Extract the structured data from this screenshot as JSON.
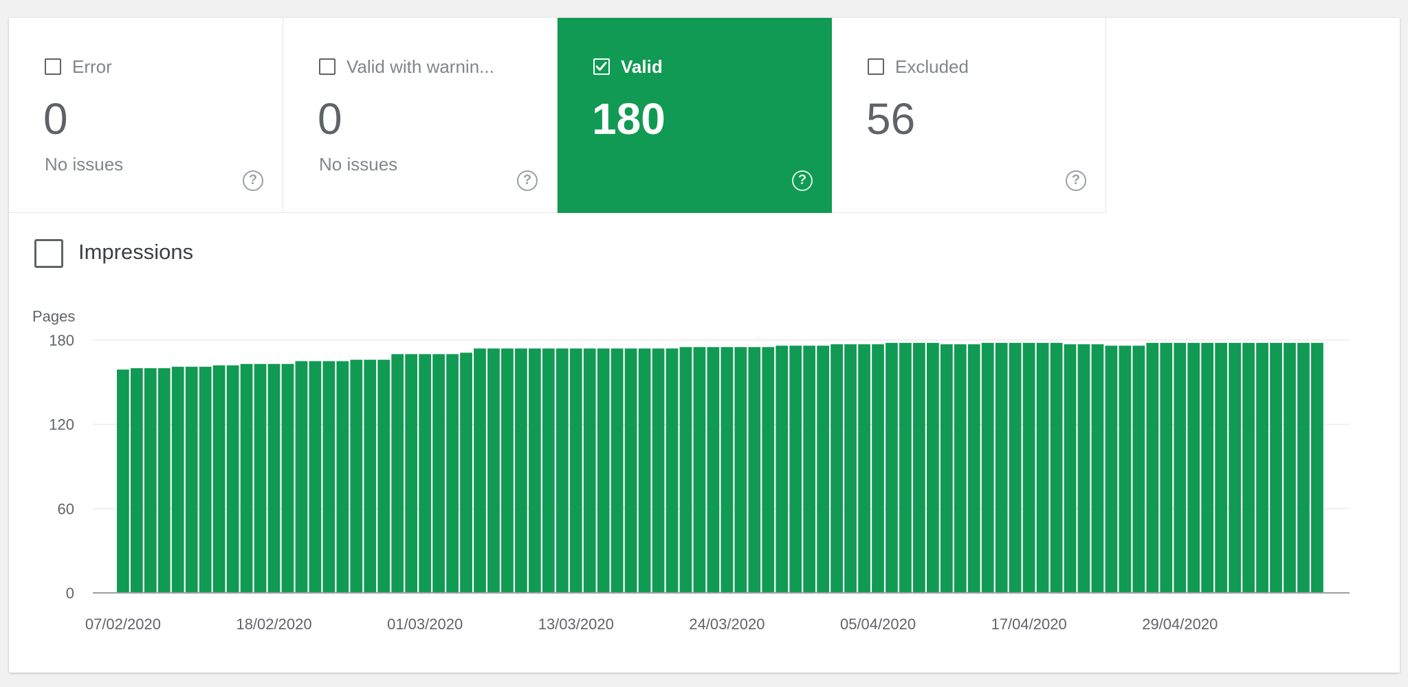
{
  "tiles": [
    {
      "label": "Error",
      "count": "0",
      "sub": "No issues",
      "checked": false
    },
    {
      "label": "Valid with warnin...",
      "count": "0",
      "sub": "No issues",
      "checked": false
    },
    {
      "label": "Valid",
      "count": "180",
      "sub": "",
      "checked": true
    },
    {
      "label": "Excluded",
      "count": "56",
      "sub": "",
      "checked": false
    }
  ],
  "help_glyph": "?",
  "impressions": {
    "label": "Impressions",
    "checked": false
  },
  "colors": {
    "accent": "#119a53",
    "bar": "#119a53"
  },
  "chart_data": {
    "type": "bar",
    "ylabel": "Pages",
    "ylim": [
      0,
      180
    ],
    "yticks": [
      0,
      60,
      120,
      180
    ],
    "grid": true,
    "xtick_labels": [
      "07/02/2020",
      "18/02/2020",
      "01/03/2020",
      "13/03/2020",
      "24/03/2020",
      "05/04/2020",
      "17/04/2020",
      "29/04/2020"
    ],
    "series": [
      {
        "values": [
          159,
          160,
          160,
          160,
          161,
          161,
          161,
          162,
          162,
          163,
          163,
          163,
          163,
          165,
          165,
          165,
          165,
          166,
          166,
          166,
          170,
          170,
          170,
          170,
          170,
          171,
          174,
          174,
          174,
          174,
          174,
          174,
          174,
          174,
          174,
          174,
          174,
          174,
          174,
          174,
          174,
          175,
          175,
          175,
          175,
          175,
          175,
          175,
          176,
          176,
          176,
          176,
          177,
          177,
          177,
          177,
          178,
          178,
          178,
          178,
          177,
          177,
          177,
          178,
          178,
          178,
          178,
          178,
          178,
          177,
          177,
          177,
          176,
          176,
          176,
          178,
          178,
          178,
          178,
          178,
          178,
          178,
          178,
          178,
          178,
          178,
          178,
          178
        ]
      }
    ]
  }
}
